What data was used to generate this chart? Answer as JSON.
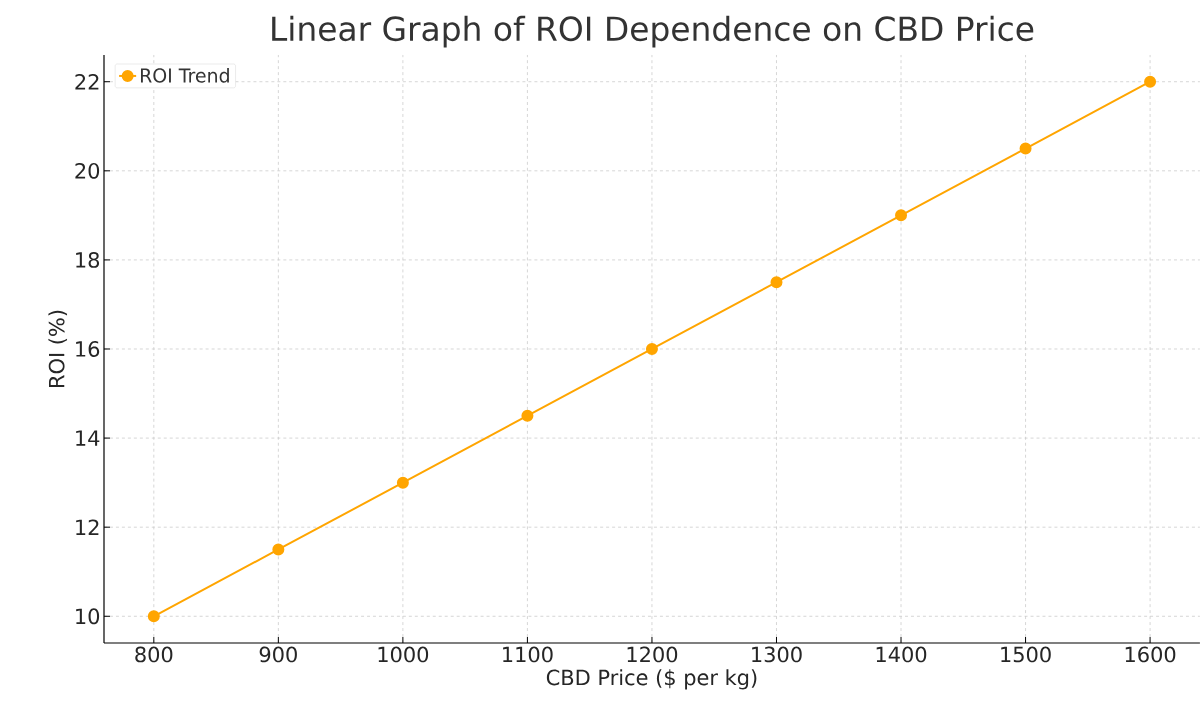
{
  "chart_data": {
    "type": "line",
    "title": "Linear Graph of ROI Dependence on CBD Price",
    "xlabel": "CBD Price ($ per kg)",
    "ylabel": "ROI (%)",
    "x": [
      800,
      900,
      1000,
      1100,
      1200,
      1300,
      1400,
      1500,
      1600
    ],
    "series": [
      {
        "name": "ROI Trend",
        "color": "#ffa500",
        "values": [
          10,
          11.5,
          13,
          14.5,
          16,
          17.5,
          19,
          20.5,
          22
        ]
      }
    ],
    "xlim": [
      760,
      1640
    ],
    "ylim": [
      9.4,
      22.6
    ],
    "xticks": [
      800,
      900,
      1000,
      1100,
      1200,
      1300,
      1400,
      1500,
      1600
    ],
    "yticks": [
      10,
      12,
      14,
      16,
      18,
      20,
      22
    ],
    "grid": true,
    "legend": "top left",
    "marker": "circle",
    "line_style": "solid"
  }
}
